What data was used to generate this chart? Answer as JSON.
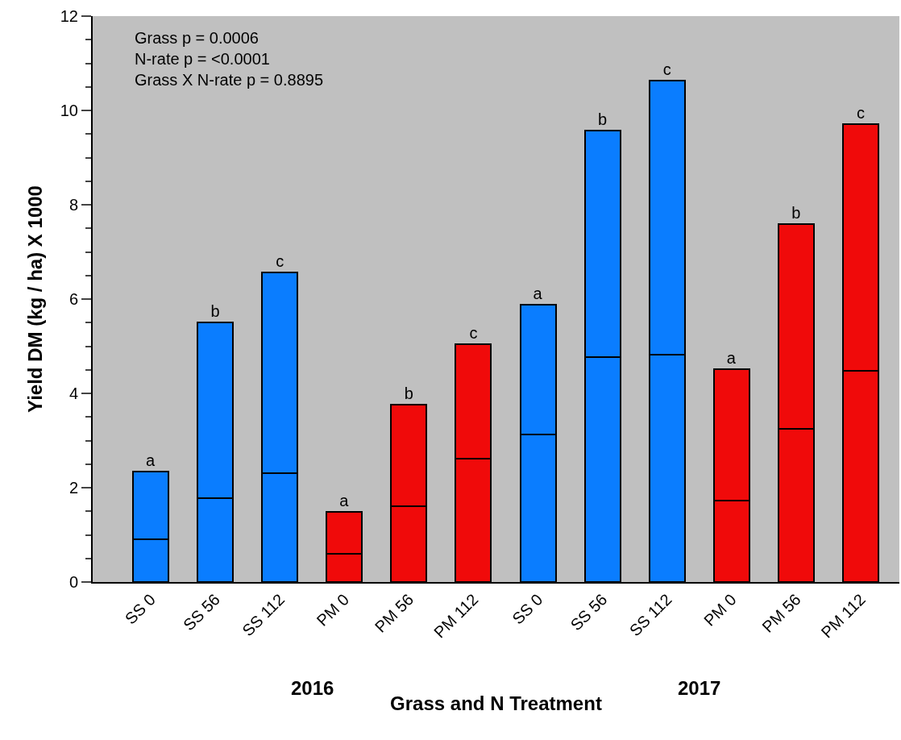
{
  "chart_data": {
    "type": "bar",
    "stacked": true,
    "xlabel": "Grass and N Treatment",
    "ylabel": "Yield DM (kg / ha) X 1000",
    "categories": [
      "SS 0",
      "SS 56",
      "SS 112",
      "PM 0",
      "PM 56",
      "PM 112",
      "SS 0",
      "SS 56",
      "SS 112",
      "PM 0",
      "PM 56",
      "PM 112"
    ],
    "series": [
      {
        "colors": [
          "#0a7dff",
          "#0a7dff",
          "#0a7dff",
          "#f00a0a",
          "#f00a0a",
          "#f00a0a",
          "#0a7dff",
          "#0a7dff",
          "#0a7dff",
          "#f00a0a",
          "#f00a0a",
          "#f00a0a"
        ],
        "values": [
          0.91,
          1.78,
          2.31,
          0.6,
          1.61,
          2.62,
          3.13,
          4.77,
          4.82,
          1.73,
          3.24,
          4.48
        ]
      },
      {
        "colors": [
          "#0a7dff",
          "#0a7dff",
          "#0a7dff",
          "#f00a0a",
          "#f00a0a",
          "#f00a0a",
          "#0a7dff",
          "#0a7dff",
          "#0a7dff",
          "#f00a0a",
          "#f00a0a",
          "#f00a0a"
        ],
        "values": [
          1.43,
          3.72,
          4.25,
          0.88,
          2.15,
          2.42,
          2.75,
          4.81,
          5.82,
          2.79,
          4.35,
          5.23
        ],
        "value_labels": [
          "a",
          "b",
          "c",
          "a",
          "b",
          "c",
          "a",
          "b",
          "c",
          "a",
          "b",
          "c"
        ]
      }
    ],
    "ylim": [
      0,
      12
    ],
    "yticks": [
      0,
      2,
      4,
      6,
      8,
      10,
      12
    ],
    "grid": false,
    "legend": false,
    "annotations": [
      "Grass p = 0.0006\nN-rate p = <0.0001\nGrass X N-rate p = 0.8895",
      "2016",
      "2017"
    ]
  }
}
